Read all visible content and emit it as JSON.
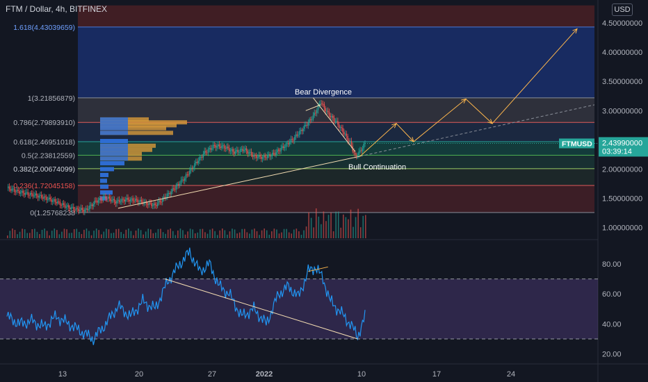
{
  "header": {
    "title": "FTM / Dollar, 4h, BITFINEX",
    "currency_button": "USD"
  },
  "price_tag": {
    "symbol": "FTMUSD",
    "price": "2.43990000",
    "countdown": "03:39:14"
  },
  "annotations": {
    "bear": "Bear Divergence",
    "bull": "Bull Continuation"
  },
  "colors": {
    "up": "#26a69a",
    "down": "#ef5350",
    "rsi": "#2196f3",
    "trend": "#f5deb3",
    "projection": "#ffb74d",
    "background": "#131722"
  },
  "chart_data": [
    {
      "type": "candlestick",
      "title": "FTM / Dollar, 4h, BITFINEX",
      "x_ticks": [
        "13",
        "20",
        "27",
        "2022",
        "10",
        "17",
        "24"
      ],
      "y_ticks": [
        "4.50000000",
        "4.00000000",
        "3.50000000",
        "3.00000000",
        "2.50000000",
        "2.00000000",
        "1.50000000",
        "1.00000000"
      ],
      "ylim": [
        0.85,
        4.8
      ],
      "fib_levels": [
        {
          "ratio": "1.618",
          "value": 4.43039659,
          "label": "1.618(4.43039659)"
        },
        {
          "ratio": "1",
          "value": 3.21856879,
          "label": "1(3.21856879)"
        },
        {
          "ratio": "0.786",
          "value": 2.7989391,
          "label": "0.786(2.79893910)"
        },
        {
          "ratio": "0.618",
          "value": 2.46951018,
          "label": "0.618(2.46951018)"
        },
        {
          "ratio": "0.5",
          "value": 2.23812559,
          "label": "0.5(2.23812559)"
        },
        {
          "ratio": "0.382",
          "value": 2.00674099,
          "label": "0.382(2.00674099)"
        },
        {
          "ratio": "0.236",
          "value": 1.72045158,
          "label": "0.236(1.72045158)"
        },
        {
          "ratio": "0",
          "value": 1.25768238,
          "label": "0(1.25768238"
        }
      ],
      "last_price": 2.4399,
      "approx_close_path": [
        [
          0,
          1.68
        ],
        [
          8,
          1.62
        ],
        [
          16,
          1.58
        ],
        [
          24,
          1.55
        ],
        [
          32,
          1.5
        ],
        [
          40,
          1.44
        ],
        [
          48,
          1.36
        ],
        [
          56,
          1.31
        ],
        [
          64,
          1.3
        ],
        [
          72,
          1.45
        ],
        [
          80,
          1.52
        ],
        [
          88,
          1.44
        ],
        [
          96,
          1.48
        ],
        [
          104,
          1.47
        ],
        [
          112,
          1.42
        ],
        [
          120,
          1.38
        ],
        [
          128,
          1.52
        ],
        [
          136,
          1.68
        ],
        [
          144,
          1.85
        ],
        [
          152,
          2.08
        ],
        [
          160,
          2.28
        ],
        [
          168,
          2.4
        ],
        [
          176,
          2.38
        ],
        [
          184,
          2.29
        ],
        [
          192,
          2.34
        ],
        [
          200,
          2.22
        ],
        [
          208,
          2.2
        ],
        [
          216,
          2.26
        ],
        [
          224,
          2.38
        ],
        [
          232,
          2.52
        ],
        [
          240,
          2.7
        ],
        [
          248,
          2.9
        ],
        [
          254,
          3.15
        ],
        [
          260,
          2.95
        ],
        [
          266,
          2.82
        ],
        [
          272,
          2.65
        ],
        [
          278,
          2.45
        ],
        [
          282,
          2.22
        ],
        [
          286,
          2.3
        ],
        [
          290,
          2.44
        ]
      ],
      "rsi": {
        "y_ticks": [
          "80.00",
          "60.00",
          "40.00",
          "20.00"
        ],
        "bands": [
          70,
          30
        ],
        "approx_path": [
          [
            0,
            45
          ],
          [
            10,
            40
          ],
          [
            20,
            42
          ],
          [
            30,
            38
          ],
          [
            40,
            45
          ],
          [
            50,
            40
          ],
          [
            60,
            35
          ],
          [
            70,
            30
          ],
          [
            80,
            40
          ],
          [
            90,
            52
          ],
          [
            100,
            45
          ],
          [
            110,
            55
          ],
          [
            120,
            50
          ],
          [
            130,
            68
          ],
          [
            140,
            80
          ],
          [
            148,
            88
          ],
          [
            156,
            75
          ],
          [
            164,
            80
          ],
          [
            172,
            65
          ],
          [
            180,
            60
          ],
          [
            190,
            45
          ],
          [
            200,
            50
          ],
          [
            210,
            40
          ],
          [
            220,
            60
          ],
          [
            228,
            65
          ],
          [
            236,
            58
          ],
          [
            244,
            75
          ],
          [
            250,
            78
          ],
          [
            256,
            70
          ],
          [
            262,
            55
          ],
          [
            270,
            48
          ],
          [
            278,
            40
          ],
          [
            284,
            32
          ],
          [
            288,
            40
          ],
          [
            290,
            45
          ]
        ]
      }
    }
  ]
}
